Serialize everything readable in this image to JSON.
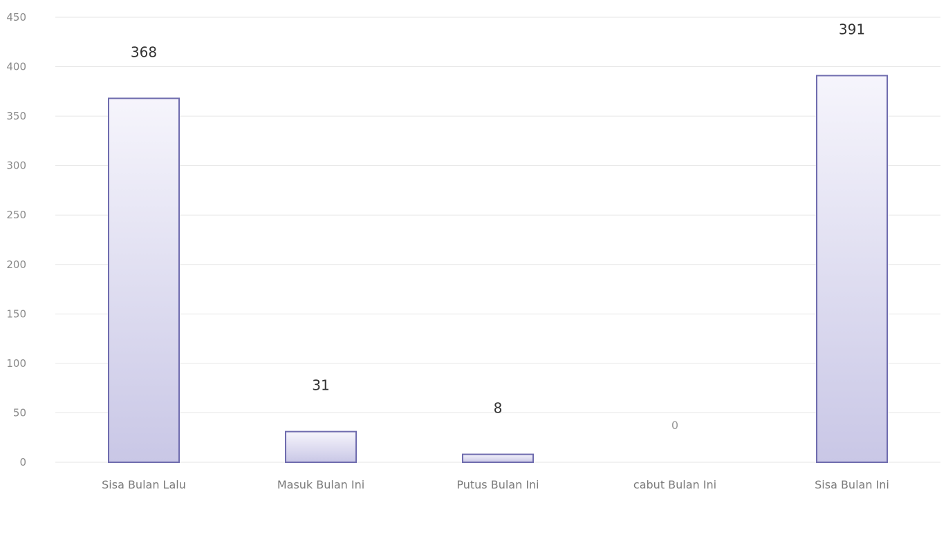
{
  "chart_data": {
    "type": "bar",
    "title": "",
    "xlabel": "",
    "ylabel": "",
    "categories": [
      "Sisa Bulan Lalu",
      "Masuk Bulan Ini",
      "Putus Bulan Ini",
      "cabut Bulan Ini",
      "Sisa Bulan Ini"
    ],
    "values": [
      368,
      31,
      8,
      0,
      391
    ],
    "data_labels": [
      "368",
      "31",
      "8",
      "0",
      "391"
    ],
    "ylim": [
      0,
      450
    ],
    "yticks": [
      0,
      50,
      100,
      150,
      200,
      250,
      300,
      350,
      400,
      450
    ],
    "grid": true,
    "legend": "none",
    "colors": {
      "bar_fill_top": "#f6f5fc",
      "bar_fill_bottom": "#c9c7e6",
      "bar_border": "#6f6cae",
      "gridline": "#e6e6e6"
    }
  }
}
